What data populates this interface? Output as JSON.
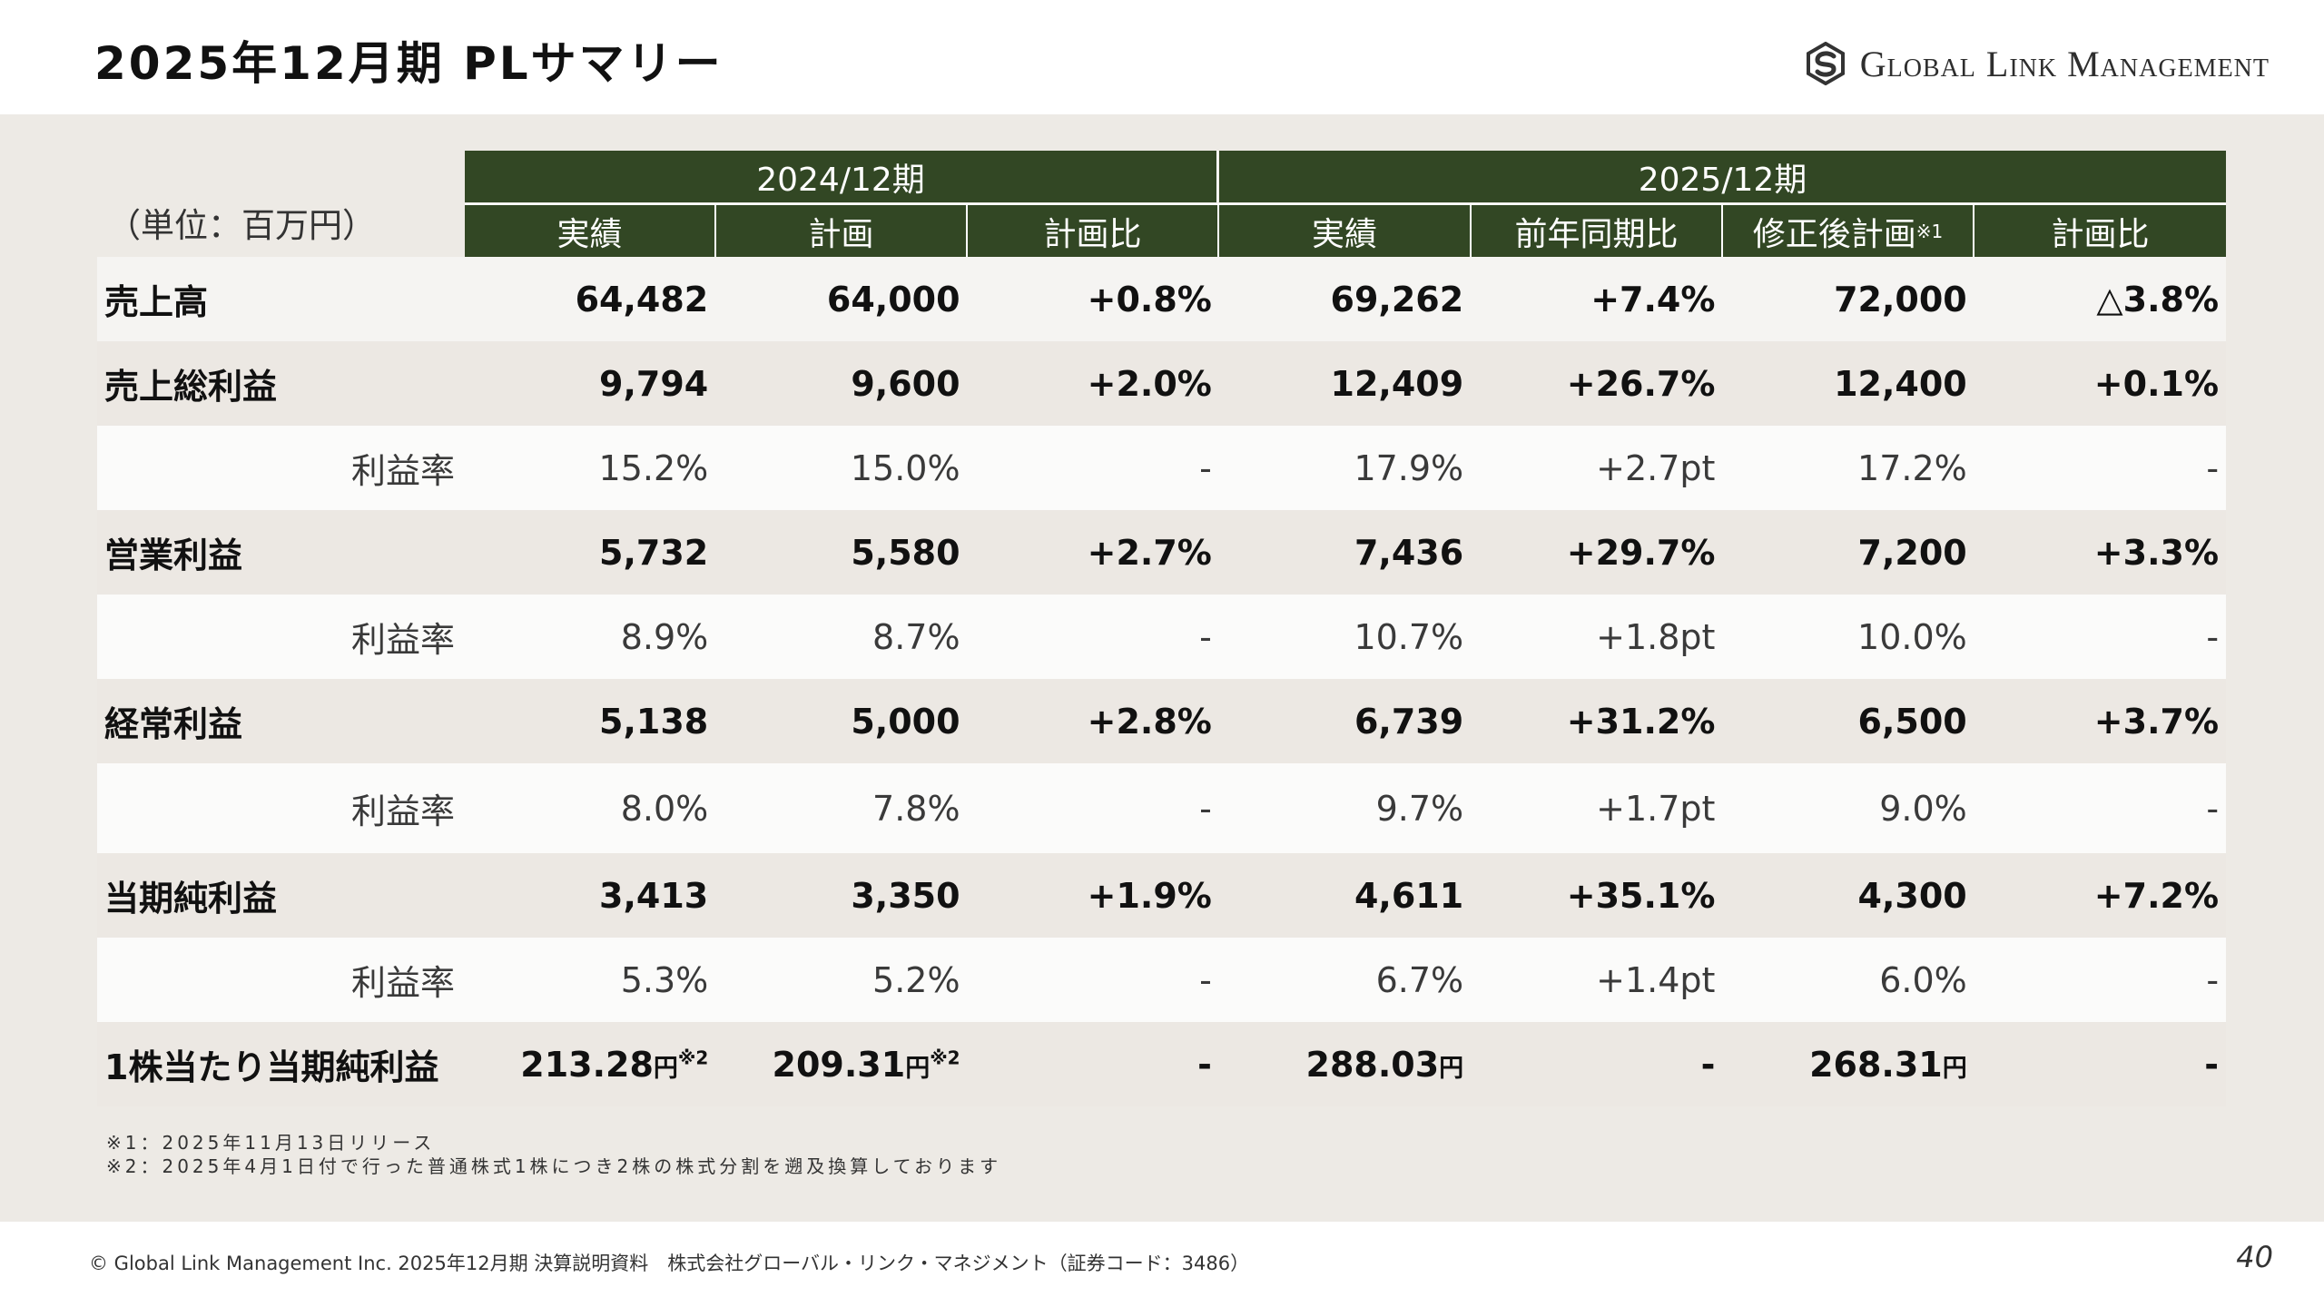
{
  "header": {
    "title": "2025年12月期 PLサマリー",
    "logo_text": "Global Link Management",
    "logo_icon": "gs-logo-icon"
  },
  "table": {
    "unit_label": "（単位：百万円）",
    "period_headers": [
      "2024/12期",
      "2025/12期"
    ],
    "columns_2024": [
      "実績",
      "計画",
      "計画比"
    ],
    "columns_2025": [
      "実績",
      "前年同期比",
      "修正後計画",
      "計画比"
    ],
    "revised_plan_note_mark": "※1",
    "rows": [
      {
        "label": "売上高",
        "values": [
          "64,482",
          "64,000",
          "+0.8%",
          "69,262",
          "+7.4%",
          "72,000",
          "△3.8%"
        ]
      },
      {
        "label": "売上総利益",
        "values": [
          "9,794",
          "9,600",
          "+2.0%",
          "12,409",
          "+26.7%",
          "12,400",
          "+0.1%"
        ]
      },
      {
        "label": "利益率",
        "values": [
          "15.2%",
          "15.0%",
          "-",
          "17.9%",
          "+2.7pt",
          "17.2%",
          "-"
        ]
      },
      {
        "label": "営業利益",
        "values": [
          "5,732",
          "5,580",
          "+2.7%",
          "7,436",
          "+29.7%",
          "7,200",
          "+3.3%"
        ]
      },
      {
        "label": "利益率",
        "values": [
          "8.9%",
          "8.7%",
          "-",
          "10.7%",
          "+1.8pt",
          "10.0%",
          "-"
        ]
      },
      {
        "label": "経常利益",
        "values": [
          "5,138",
          "5,000",
          "+2.8%",
          "6,739",
          "+31.2%",
          "6,500",
          "+3.7%"
        ]
      },
      {
        "label": "利益率",
        "values": [
          "8.0%",
          "7.8%",
          "-",
          "9.7%",
          "+1.7pt",
          "9.0%",
          "-"
        ]
      },
      {
        "label": "当期純利益",
        "values": [
          "3,413",
          "3,350",
          "+1.9%",
          "4,611",
          "+35.1%",
          "4,300",
          "+7.2%"
        ]
      },
      {
        "label": "利益率",
        "values": [
          "5.3%",
          "5.2%",
          "-",
          "6.7%",
          "+1.4pt",
          "6.0%",
          "-"
        ]
      },
      {
        "label": "1株当たり当期純利益",
        "values": [
          "213.28",
          "209.31",
          "-",
          "288.03",
          "-",
          "268.31",
          "-"
        ],
        "yen_unit": "円",
        "note_mark": "※2"
      }
    ]
  },
  "notes": [
    "※1：2025年11月13日リリース",
    "※2：2025年4月1日付で行った普通株式1株につき2株の株式分割を遡及換算しております"
  ],
  "footer": {
    "text": "© Global Link Management Inc. 2025年12月期 決算説明資料　株式会社グローバル・リンク・マネジメント（証券コード：3486）",
    "page_number": "40"
  },
  "colors": {
    "header_green": "#324724",
    "background_beige": "#edeae5"
  }
}
